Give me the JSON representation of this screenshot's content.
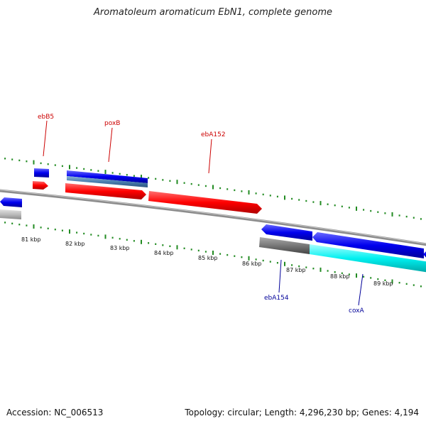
{
  "title": "Aromatoleum aromaticum EbN1, complete genome",
  "footer": {
    "accession": "Accession: NC_006513",
    "stats": "Topology: circular; Length: 4,296,230 bp; Genes: 4,194"
  },
  "gene_labels": [
    {
      "text": "ebB5",
      "strand": "forward"
    },
    {
      "text": "poxB",
      "strand": "forward"
    },
    {
      "text": "ebA152",
      "strand": "forward"
    },
    {
      "text": "ebA154",
      "strand": "reverse"
    },
    {
      "text": "coxA",
      "strand": "reverse"
    }
  ],
  "scale_labels": [
    "81 kbp",
    "82 kbp",
    "83 kbp",
    "84 kbp",
    "85 kbp",
    "86 kbp",
    "87 kbp",
    "88 kbp",
    "89 kbp"
  ],
  "colors": {
    "forward_gene": "#ff0000",
    "blue_gene": "#0000ee",
    "cyan_gene": "#00eeee",
    "steel_gene": "#4a7fb0",
    "grey_gene": "#777777",
    "light_grey_gene": "#bbbbbb",
    "backbone": "#8c8c8c",
    "tick": "#228b22"
  }
}
